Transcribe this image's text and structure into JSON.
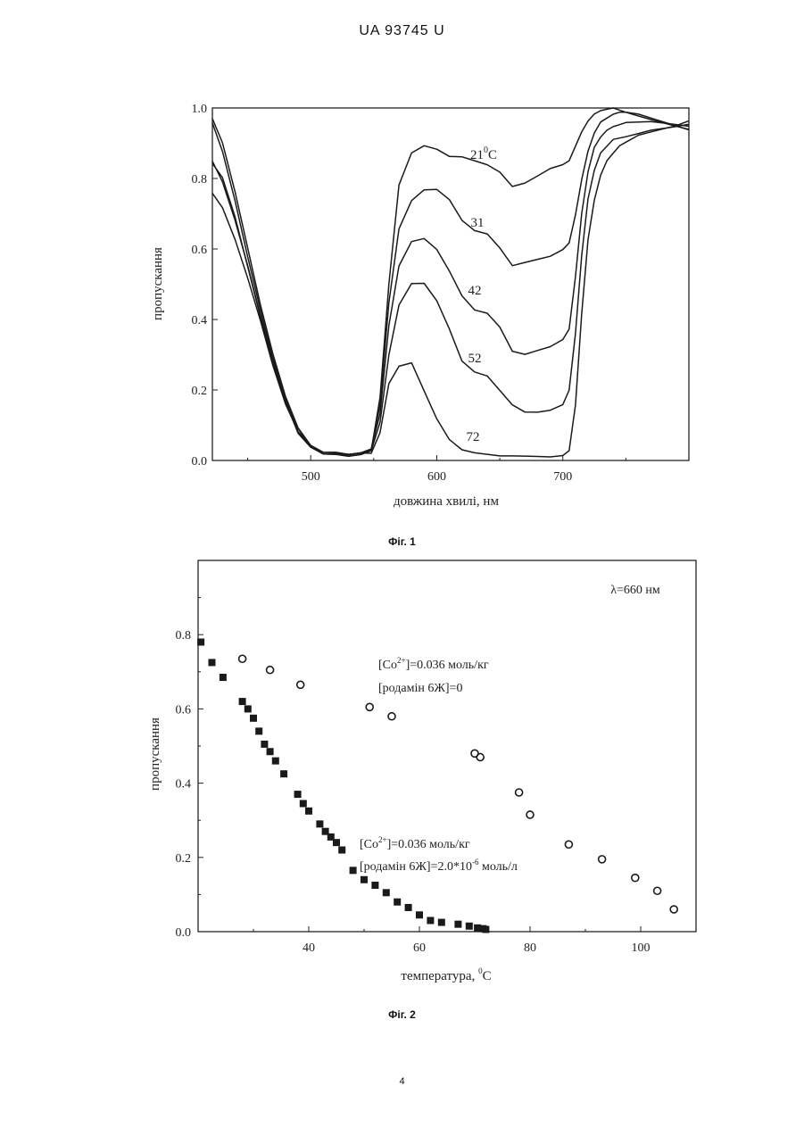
{
  "header": {
    "text": "UA   93745   U"
  },
  "page_number": "4",
  "figures": [
    {
      "caption": "Фіг. 1"
    },
    {
      "caption": "Фіг. 2"
    }
  ],
  "chart_data": [
    {
      "type": "line",
      "title": "",
      "xlabel": "довжина хвилі, нм",
      "ylabel": "пропускання",
      "xlim": [
        422,
        800
      ],
      "ylim": [
        0,
        1.0
      ],
      "xticks": [
        "500",
        "600",
        "700"
      ],
      "yticks": [
        "0.0",
        "0.2",
        "0.4",
        "0.6",
        "0.8",
        "1.0"
      ],
      "grid": false,
      "x": [
        422,
        430,
        440,
        450,
        460,
        470,
        480,
        490,
        500,
        510,
        520,
        530,
        540,
        548,
        555,
        562,
        570,
        580,
        590,
        600,
        610,
        620,
        630,
        640,
        650,
        660,
        670,
        680,
        690,
        700,
        705,
        710,
        715,
        720,
        725,
        730,
        735,
        740,
        745,
        750,
        760,
        770,
        780,
        790,
        800
      ],
      "series": [
        {
          "name": "21°C",
          "label": "21°C",
          "values": [
            0.97,
            0.9,
            0.76,
            0.6,
            0.44,
            0.3,
            0.18,
            0.09,
            0.04,
            0.02,
            0.02,
            0.015,
            0.02,
            0.03,
            0.18,
            0.5,
            0.78,
            0.87,
            0.89,
            0.88,
            0.86,
            0.86,
            0.85,
            0.84,
            0.82,
            0.78,
            0.79,
            0.81,
            0.83,
            0.84,
            0.85,
            0.89,
            0.93,
            0.96,
            0.98,
            0.99,
            0.995,
            1.0,
            0.995,
            0.99,
            0.98,
            0.97,
            0.96,
            0.95,
            0.94
          ]
        },
        {
          "name": "31",
          "label": "31",
          "values": [
            0.96,
            0.88,
            0.74,
            0.58,
            0.43,
            0.29,
            0.18,
            0.09,
            0.04,
            0.02,
            0.02,
            0.015,
            0.02,
            0.03,
            0.16,
            0.45,
            0.66,
            0.74,
            0.77,
            0.77,
            0.74,
            0.68,
            0.65,
            0.64,
            0.6,
            0.55,
            0.56,
            0.57,
            0.58,
            0.6,
            0.62,
            0.7,
            0.8,
            0.88,
            0.93,
            0.96,
            0.97,
            0.98,
            0.985,
            0.985,
            0.98,
            0.97,
            0.96,
            0.95,
            0.94
          ]
        },
        {
          "name": "42",
          "label": "42",
          "values": [
            0.84,
            0.8,
            0.69,
            0.55,
            0.41,
            0.28,
            0.17,
            0.08,
            0.04,
            0.02,
            0.02,
            0.015,
            0.02,
            0.03,
            0.13,
            0.38,
            0.55,
            0.62,
            0.63,
            0.6,
            0.54,
            0.47,
            0.43,
            0.42,
            0.38,
            0.31,
            0.3,
            0.31,
            0.32,
            0.34,
            0.37,
            0.52,
            0.7,
            0.82,
            0.89,
            0.92,
            0.94,
            0.95,
            0.955,
            0.96,
            0.96,
            0.96,
            0.955,
            0.95,
            0.945
          ]
        },
        {
          "name": "52",
          "label": "52",
          "values": [
            0.85,
            0.79,
            0.68,
            0.55,
            0.41,
            0.28,
            0.17,
            0.08,
            0.04,
            0.02,
            0.02,
            0.015,
            0.02,
            0.03,
            0.11,
            0.3,
            0.44,
            0.5,
            0.5,
            0.45,
            0.37,
            0.28,
            0.25,
            0.24,
            0.2,
            0.16,
            0.14,
            0.14,
            0.145,
            0.16,
            0.2,
            0.36,
            0.58,
            0.74,
            0.82,
            0.87,
            0.89,
            0.91,
            0.915,
            0.92,
            0.93,
            0.94,
            0.945,
            0.95,
            0.955
          ]
        },
        {
          "name": "72",
          "label": "72",
          "values": [
            0.76,
            0.72,
            0.63,
            0.52,
            0.4,
            0.27,
            0.16,
            0.08,
            0.04,
            0.02,
            0.02,
            0.015,
            0.02,
            0.02,
            0.08,
            0.22,
            0.27,
            0.28,
            0.2,
            0.12,
            0.06,
            0.03,
            0.02,
            0.015,
            0.01,
            0.01,
            0.01,
            0.01,
            0.01,
            0.015,
            0.03,
            0.16,
            0.42,
            0.63,
            0.74,
            0.81,
            0.85,
            0.87,
            0.89,
            0.9,
            0.92,
            0.93,
            0.94,
            0.95,
            0.965
          ]
        }
      ]
    },
    {
      "type": "scatter",
      "title": "",
      "annotation": "λ=660 нм",
      "xlabel_parts": [
        "температура, ",
        "0",
        "C"
      ],
      "ylabel": "пропускання",
      "xlim": [
        20,
        110
      ],
      "ylim": [
        0,
        1.0
      ],
      "xticks": [
        "40",
        "60",
        "80",
        "100"
      ],
      "yticks": [
        "0.0",
        "0.2",
        "0.4",
        "0.6",
        "0.8"
      ],
      "grid": false,
      "series": [
        {
          "name": "open circles",
          "marker": "circle-open",
          "label_lines": [
            [
              "[Co",
              "2+",
              "]=0.036 моль/кг"
            ],
            [
              "[родамін 6Ж]=0"
            ]
          ],
          "x": [
            28,
            33,
            38.5,
            51,
            55,
            70,
            71,
            78,
            80,
            87,
            93,
            99,
            103,
            106
          ],
          "y": [
            0.735,
            0.705,
            0.665,
            0.605,
            0.58,
            0.48,
            0.47,
            0.375,
            0.315,
            0.235,
            0.195,
            0.145,
            0.11,
            0.06
          ]
        },
        {
          "name": "filled squares",
          "marker": "square-filled",
          "label_lines": [
            [
              "[Co",
              "2+",
              "]=0.036 моль/кг"
            ],
            [
              "[родамін 6Ж]=2.0*10",
              "-6",
              " моль/л"
            ]
          ],
          "x": [
            20.5,
            22.5,
            24.5,
            28,
            29,
            30,
            31,
            32,
            33,
            34,
            35.5,
            38,
            39,
            40,
            42,
            43,
            44,
            45,
            46,
            48,
            50,
            52,
            54,
            56,
            58,
            60,
            62,
            64,
            67,
            69,
            70.5,
            71.5,
            72
          ],
          "y": [
            0.78,
            0.725,
            0.685,
            0.62,
            0.6,
            0.575,
            0.54,
            0.505,
            0.485,
            0.46,
            0.425,
            0.37,
            0.345,
            0.325,
            0.29,
            0.27,
            0.255,
            0.24,
            0.22,
            0.165,
            0.14,
            0.125,
            0.105,
            0.08,
            0.065,
            0.045,
            0.03,
            0.025,
            0.02,
            0.015,
            0.01,
            0.008,
            0.006
          ]
        }
      ]
    }
  ]
}
